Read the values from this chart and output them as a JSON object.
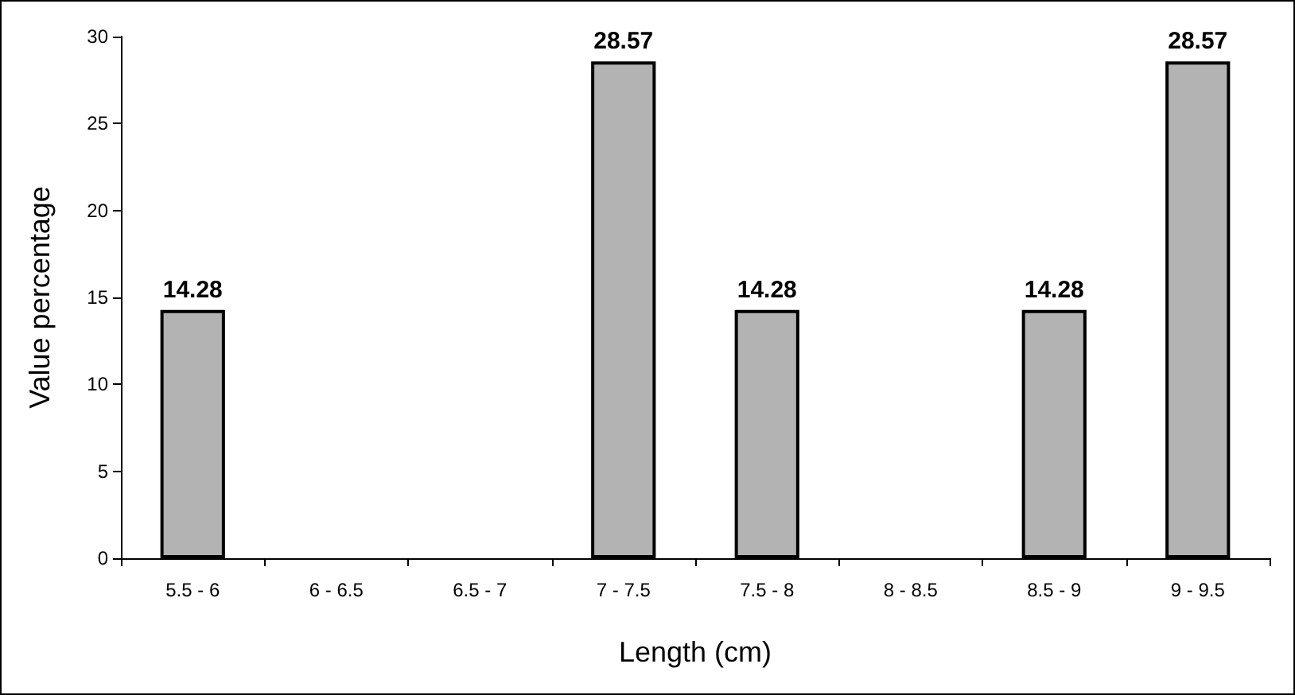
{
  "chart_data": {
    "type": "bar",
    "xlabel": "Length (cm)",
    "ylabel": "Value percentage",
    "categories": [
      "5.5 - 6",
      "6 - 6.5",
      "6.5 - 7",
      "7 - 7.5",
      "7.5 - 8",
      "8 - 8.5",
      "8.5 - 9",
      "9 - 9.5"
    ],
    "values": [
      14.28,
      null,
      null,
      28.57,
      14.28,
      null,
      14.28,
      28.57
    ],
    "value_labels": [
      "14.28",
      null,
      null,
      "28.57",
      "14.28",
      null,
      "14.28",
      "28.57"
    ],
    "color": "#b3b3b3",
    "ylim": [
      0,
      30
    ],
    "yticks": [
      0,
      5,
      10,
      15,
      20,
      25,
      30
    ],
    "grid": false
  }
}
